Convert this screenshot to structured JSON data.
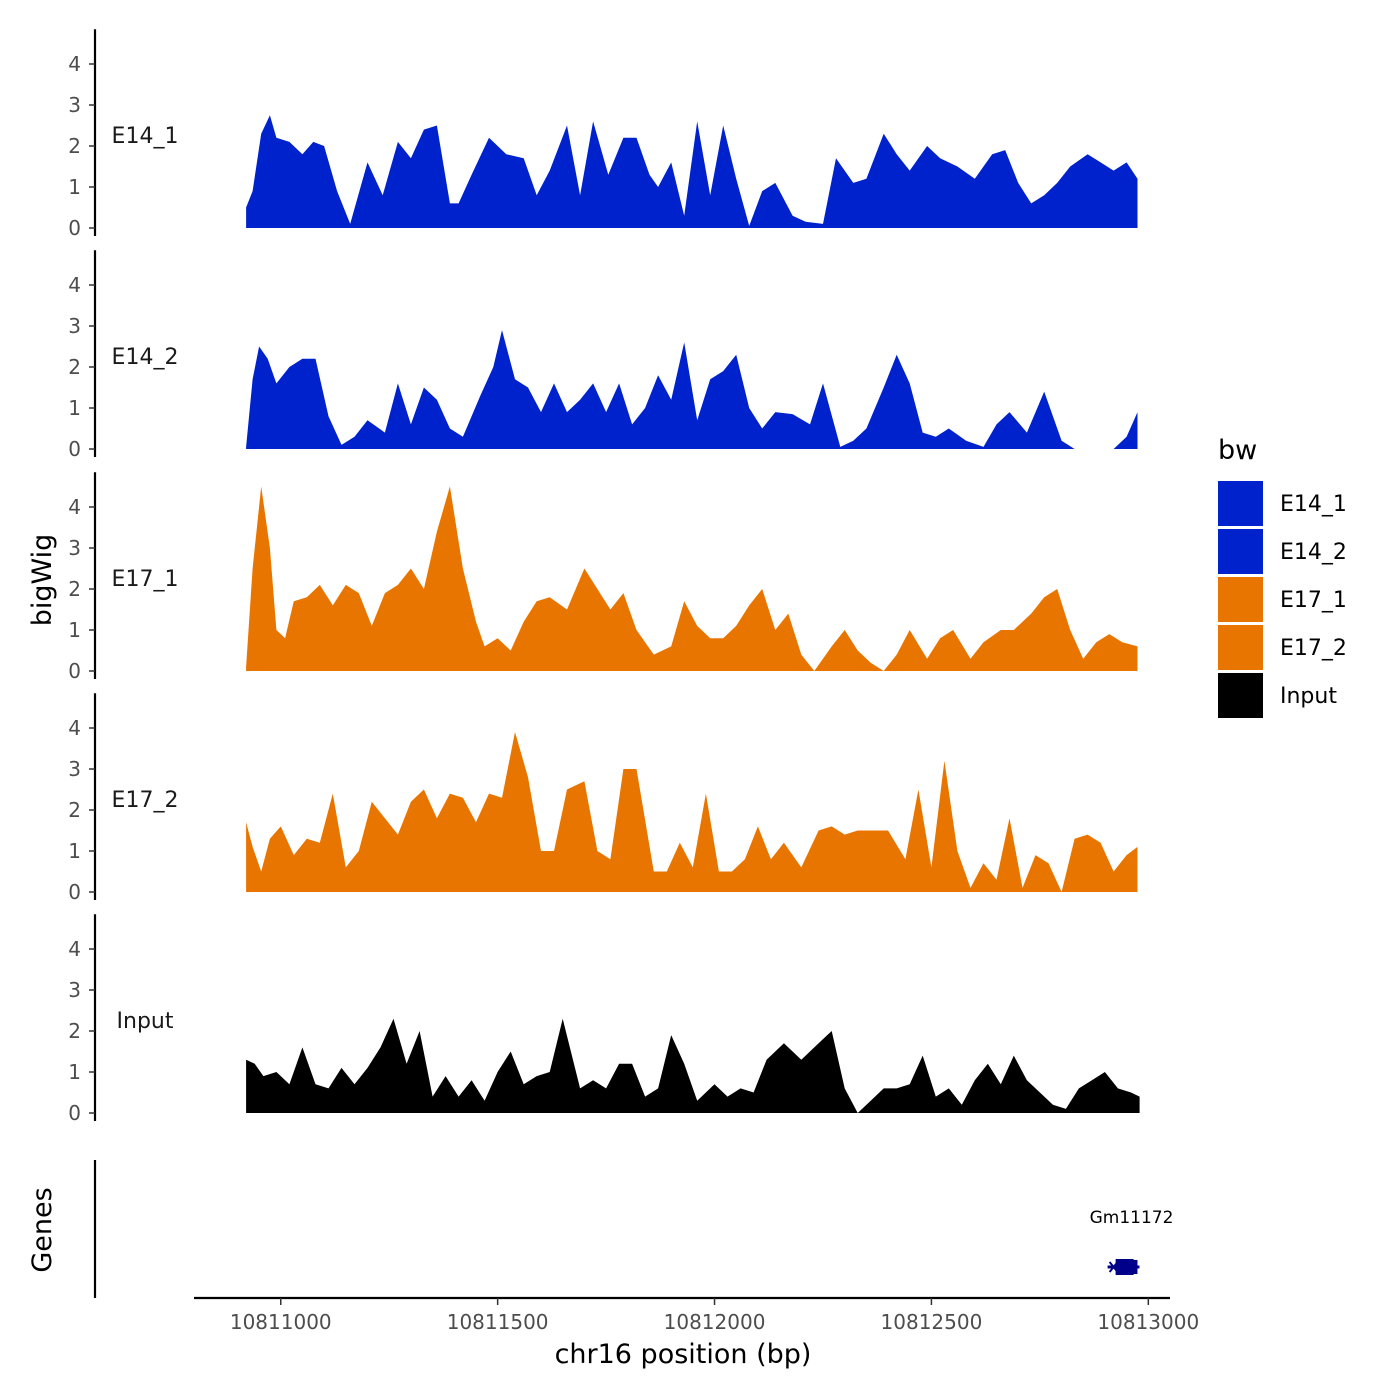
{
  "chart_data": {
    "type": "area",
    "title": "",
    "xlabel": "chr16 position (bp)",
    "ylabel": "bigWig",
    "genes_label": "Genes",
    "x_range": [
      10810800,
      10813050
    ],
    "x_ticks": [
      10811000,
      10811500,
      10812000,
      10812500,
      10813000
    ],
    "x_tick_labels": [
      "10811000",
      "10811500",
      "10812000",
      "10812500",
      "10813000"
    ],
    "y_range": [
      0,
      4.8
    ],
    "y_ticks": [
      0,
      1,
      2,
      3,
      4
    ],
    "y_tick_labels": [
      "0",
      "1",
      "2",
      "3",
      "4"
    ],
    "colors": {
      "E14": "#0022cc",
      "E17": "#e87500",
      "Input": "#000000",
      "gene": "#00008b",
      "axis": "#000000"
    },
    "legend": {
      "title": "bw",
      "position": "right",
      "entries": [
        {
          "label": "E14_1",
          "color": "#0022cc"
        },
        {
          "label": "E14_2",
          "color": "#0022cc"
        },
        {
          "label": "E17_1",
          "color": "#e87500"
        },
        {
          "label": "E17_2",
          "color": "#e87500"
        },
        {
          "label": "Input",
          "color": "#000000"
        }
      ]
    },
    "series": [
      {
        "name": "E14_1",
        "color": "#0022cc",
        "x": [
          10810920,
          10810935,
          10810955,
          10810975,
          10810990,
          10811020,
          10811050,
          10811075,
          10811100,
          10811130,
          10811160,
          10811200,
          10811235,
          10811270,
          10811300,
          10811330,
          10811360,
          10811390,
          10811410,
          10811440,
          10811480,
          10811520,
          10811560,
          10811590,
          10811620,
          10811660,
          10811690,
          10811720,
          10811755,
          10811790,
          10811820,
          10811850,
          10811870,
          10811900,
          10811930,
          10811960,
          10811990,
          10812020,
          10812050,
          10812080,
          10812110,
          10812140,
          10812180,
          10812210,
          10812250,
          10812280,
          10812320,
          10812350,
          10812390,
          10812420,
          10812450,
          10812490,
          10812520,
          10812560,
          10812600,
          10812640,
          10812670,
          10812700,
          10812730,
          10812760,
          10812790,
          10812820,
          10812860,
          10812890,
          10812920,
          10812950,
          10812975
        ],
        "values": [
          0.5,
          0.9,
          2.3,
          2.75,
          2.2,
          2.1,
          1.8,
          2.1,
          2.0,
          0.9,
          0.1,
          1.6,
          0.8,
          2.1,
          1.7,
          2.4,
          2.5,
          0.6,
          0.6,
          1.3,
          2.2,
          1.8,
          1.7,
          0.8,
          1.4,
          2.5,
          0.8,
          2.6,
          1.3,
          2.2,
          2.2,
          1.3,
          1.0,
          1.6,
          0.3,
          2.6,
          0.8,
          2.5,
          1.2,
          0.05,
          0.9,
          1.1,
          0.3,
          0.15,
          0.1,
          1.7,
          1.1,
          1.2,
          2.3,
          1.8,
          1.4,
          2.0,
          1.7,
          1.5,
          1.2,
          1.8,
          1.9,
          1.1,
          0.6,
          0.8,
          1.1,
          1.5,
          1.8,
          1.6,
          1.4,
          1.6,
          1.2
        ]
      },
      {
        "name": "E14_2",
        "color": "#0022cc",
        "x": [
          10810920,
          10810935,
          10810950,
          10810970,
          10810990,
          10811020,
          10811050,
          10811080,
          10811110,
          10811140,
          10811170,
          10811200,
          10811240,
          10811270,
          10811300,
          10811330,
          10811360,
          10811390,
          10811420,
          10811460,
          10811490,
          10811510,
          10811540,
          10811570,
          10811600,
          10811630,
          10811660,
          10811690,
          10811720,
          10811750,
          10811780,
          10811810,
          10811840,
          10811870,
          10811900,
          10811930,
          10811960,
          10811990,
          10812020,
          10812050,
          10812080,
          10812110,
          10812140,
          10812180,
          10812220,
          10812250,
          10812290,
          10812320,
          10812350,
          10812390,
          10812420,
          10812450,
          10812480,
          10812510,
          10812540,
          10812580,
          10812620,
          10812650,
          10812680,
          10812720,
          10812760,
          10812800,
          10812830,
          10812860,
          10812890,
          10812920,
          10812950,
          10812975
        ],
        "values": [
          0.05,
          1.7,
          2.5,
          2.2,
          1.6,
          2.0,
          2.2,
          2.2,
          0.8,
          0.1,
          0.3,
          0.7,
          0.4,
          1.6,
          0.6,
          1.5,
          1.2,
          0.5,
          0.3,
          1.3,
          2.0,
          2.9,
          1.7,
          1.5,
          0.9,
          1.6,
          0.9,
          1.2,
          1.6,
          0.9,
          1.6,
          0.6,
          1.0,
          1.8,
          1.2,
          2.6,
          0.7,
          1.7,
          1.9,
          2.3,
          1.0,
          0.5,
          0.9,
          0.85,
          0.6,
          1.6,
          0.05,
          0.2,
          0.5,
          1.5,
          2.3,
          1.6,
          0.4,
          0.3,
          0.5,
          0.2,
          0.05,
          0.6,
          0.9,
          0.4,
          1.4,
          0.2,
          0.0,
          0.0,
          0.0,
          0.0,
          0.3,
          0.9
        ]
      },
      {
        "name": "E17_1",
        "color": "#e87500",
        "x": [
          10810920,
          10810935,
          10810955,
          10810975,
          10810990,
          10811010,
          10811030,
          10811060,
          10811090,
          10811120,
          10811150,
          10811180,
          10811210,
          10811240,
          10811270,
          10811300,
          10811330,
          10811360,
          10811390,
          10811420,
          10811450,
          10811470,
          10811500,
          10811530,
          10811560,
          10811590,
          10811620,
          10811660,
          10811700,
          10811730,
          10811760,
          10811790,
          10811820,
          10811860,
          10811900,
          10811930,
          10811960,
          10811990,
          10812020,
          10812050,
          10812080,
          10812110,
          10812140,
          10812170,
          10812200,
          10812230,
          10812270,
          10812300,
          10812330,
          10812360,
          10812390,
          10812420,
          10812450,
          10812490,
          10812520,
          10812550,
          10812590,
          10812620,
          10812660,
          10812690,
          10812730,
          10812760,
          10812790,
          10812820,
          10812850,
          10812880,
          10812910,
          10812940,
          10812975
        ],
        "values": [
          0.1,
          2.5,
          4.5,
          3.0,
          1.0,
          0.8,
          1.7,
          1.8,
          2.1,
          1.6,
          2.1,
          1.9,
          1.1,
          1.9,
          2.1,
          2.5,
          2.0,
          3.4,
          4.5,
          2.5,
          1.2,
          0.6,
          0.8,
          0.5,
          1.2,
          1.7,
          1.8,
          1.5,
          2.5,
          2.0,
          1.5,
          1.9,
          1.0,
          0.4,
          0.6,
          1.7,
          1.1,
          0.8,
          0.8,
          1.1,
          1.6,
          2.0,
          1.0,
          1.4,
          0.4,
          0.0,
          0.6,
          1.0,
          0.5,
          0.2,
          0.0,
          0.4,
          1.0,
          0.3,
          0.8,
          1.0,
          0.3,
          0.7,
          1.0,
          1.0,
          1.4,
          1.8,
          2.0,
          1.0,
          0.3,
          0.7,
          0.9,
          0.7,
          0.6
        ]
      },
      {
        "name": "E17_2",
        "color": "#e87500",
        "x": [
          10810920,
          10810935,
          10810955,
          10810975,
          10811000,
          10811030,
          10811060,
          10811090,
          10811120,
          10811150,
          10811180,
          10811210,
          10811240,
          10811270,
          10811300,
          10811330,
          10811360,
          10811390,
          10811420,
          10811450,
          10811480,
          10811510,
          10811540,
          10811570,
          10811600,
          10811630,
          10811660,
          10811700,
          10811730,
          10811760,
          10811790,
          10811820,
          10811860,
          10811890,
          10811920,
          10811950,
          10811980,
          10812010,
          10812040,
          10812070,
          10812100,
          10812130,
          10812160,
          10812200,
          10812240,
          10812270,
          10812300,
          10812330,
          10812360,
          10812400,
          10812440,
          10812470,
          10812500,
          10812530,
          10812560,
          10812590,
          10812620,
          10812650,
          10812680,
          10812710,
          10812740,
          10812770,
          10812800,
          10812830,
          10812860,
          10812890,
          10812920,
          10812950,
          10812975
        ],
        "values": [
          1.7,
          1.1,
          0.5,
          1.3,
          1.6,
          0.9,
          1.3,
          1.2,
          2.4,
          0.6,
          1.0,
          2.2,
          1.8,
          1.4,
          2.2,
          2.5,
          1.8,
          2.4,
          2.3,
          1.7,
          2.4,
          2.3,
          3.9,
          2.8,
          1.0,
          1.0,
          2.5,
          2.7,
          1.0,
          0.8,
          3.0,
          3.0,
          0.5,
          0.5,
          1.2,
          0.6,
          2.4,
          0.5,
          0.5,
          0.8,
          1.6,
          0.8,
          1.2,
          0.6,
          1.5,
          1.6,
          1.4,
          1.5,
          1.5,
          1.5,
          0.8,
          2.5,
          0.6,
          3.2,
          1.0,
          0.1,
          0.7,
          0.3,
          1.8,
          0.1,
          0.9,
          0.7,
          0.0,
          1.3,
          1.4,
          1.2,
          0.5,
          0.9,
          1.1
        ]
      },
      {
        "name": "Input",
        "color": "#000000",
        "x": [
          10810920,
          10810940,
          10810960,
          10810990,
          10811020,
          10811050,
          10811080,
          10811110,
          10811140,
          10811170,
          10811200,
          10811230,
          10811260,
          10811290,
          10811320,
          10811350,
          10811380,
          10811410,
          10811440,
          10811470,
          10811500,
          10811530,
          10811560,
          10811590,
          10811620,
          10811650,
          10811690,
          10811720,
          10811750,
          10811780,
          10811810,
          10811840,
          10811870,
          10811900,
          10811930,
          10811960,
          10812000,
          10812030,
          10812060,
          10812090,
          10812120,
          10812160,
          10812200,
          10812240,
          10812270,
          10812300,
          10812330,
          10812360,
          10812390,
          10812420,
          10812450,
          10812480,
          10812510,
          10812540,
          10812570,
          10812600,
          10812630,
          10812660,
          10812690,
          10812720,
          10812750,
          10812780,
          10812810,
          10812840,
          10812870,
          10812900,
          10812930,
          10812960,
          10812980
        ],
        "values": [
          1.3,
          1.2,
          0.9,
          1.0,
          0.7,
          1.6,
          0.7,
          0.6,
          1.1,
          0.7,
          1.1,
          1.6,
          2.3,
          1.2,
          2.0,
          0.4,
          0.9,
          0.4,
          0.8,
          0.3,
          1.0,
          1.5,
          0.7,
          0.9,
          1.0,
          2.3,
          0.6,
          0.8,
          0.6,
          1.2,
          1.2,
          0.4,
          0.6,
          1.9,
          1.2,
          0.3,
          0.7,
          0.4,
          0.6,
          0.5,
          1.3,
          1.7,
          1.3,
          1.7,
          2.0,
          0.6,
          0.0,
          0.3,
          0.6,
          0.6,
          0.7,
          1.4,
          0.4,
          0.6,
          0.2,
          0.8,
          1.2,
          0.7,
          1.4,
          0.8,
          0.5,
          0.2,
          0.1,
          0.6,
          0.8,
          1.0,
          0.6,
          0.5,
          0.4
        ]
      }
    ],
    "genes": [
      {
        "name": "Gm11172",
        "start": 10812920,
        "end": 10812975,
        "strand": "-",
        "color": "#00008b"
      }
    ]
  }
}
